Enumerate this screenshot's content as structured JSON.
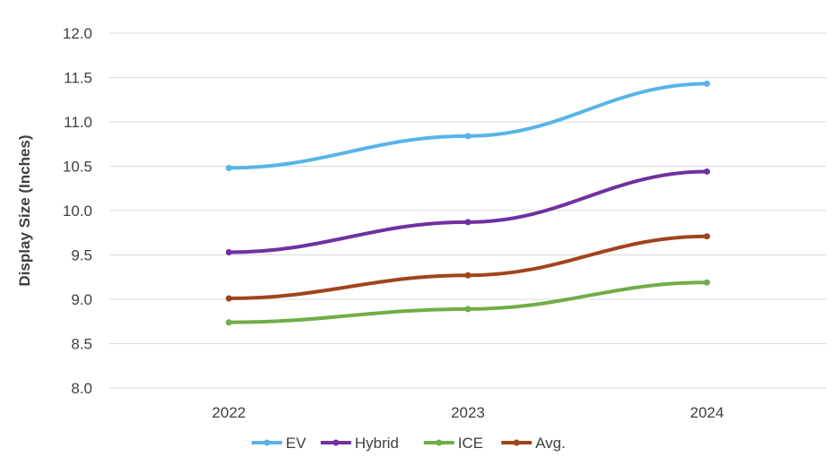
{
  "chart_data": {
    "type": "line",
    "title": "",
    "xlabel": "",
    "ylabel": "Display Size (Inches)",
    "categories": [
      "2022",
      "2023",
      "2024"
    ],
    "ylim": [
      8.0,
      12.0
    ],
    "yticks": [
      "8.0",
      "8.5",
      "9.0",
      "9.5",
      "10.0",
      "10.5",
      "11.0",
      "11.5",
      "12.0"
    ],
    "grid": true,
    "legend_position": "bottom",
    "series": [
      {
        "name": "EV",
        "color": "#56b4e9",
        "values": [
          10.48,
          10.84,
          11.43
        ]
      },
      {
        "name": "Hybrid",
        "color": "#7030a0",
        "values": [
          9.53,
          9.87,
          10.44
        ]
      },
      {
        "name": "ICE",
        "color": "#70ad47",
        "values": [
          8.74,
          8.89,
          9.19
        ]
      },
      {
        "name": "Avg.",
        "color": "#a0441c",
        "values": [
          9.01,
          9.27,
          9.71
        ]
      }
    ]
  }
}
